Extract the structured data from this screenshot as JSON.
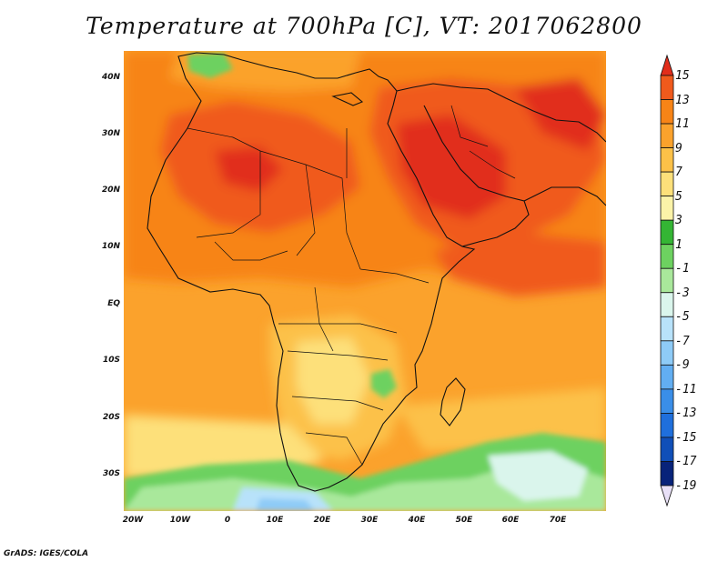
{
  "title": "Temperature at 700hPa [C], VT: 2017062800",
  "credit": "GrADS: IGES/COLA",
  "axes": {
    "y_ticks": [
      "40N",
      "30N",
      "20N",
      "10N",
      "EQ",
      "10S",
      "20S",
      "30S"
    ],
    "x_ticks": [
      "20W",
      "10W",
      "0",
      "10E",
      "20E",
      "30E",
      "40E",
      "50E",
      "60E",
      "70E"
    ]
  },
  "colorbar": {
    "labels": [
      "15",
      "13",
      "11",
      "9",
      "7",
      "5",
      "3",
      "1",
      "-1",
      "-3",
      "-5",
      "-7",
      "-9",
      "-11",
      "-13",
      "-15",
      "-17",
      "-19"
    ],
    "colors": [
      "#e12d1b",
      "#f05a1c",
      "#f78417",
      "#fba22c",
      "#fcc148",
      "#fde07a",
      "#fbf3a8",
      "#34b534",
      "#6dd160",
      "#a9e89b",
      "#daf5ec",
      "#b8e2fa",
      "#8ecbf7",
      "#62aef2",
      "#3a8ee8",
      "#1f6fdc",
      "#104fb8",
      "#08237a",
      "#e8e0f7"
    ]
  }
}
